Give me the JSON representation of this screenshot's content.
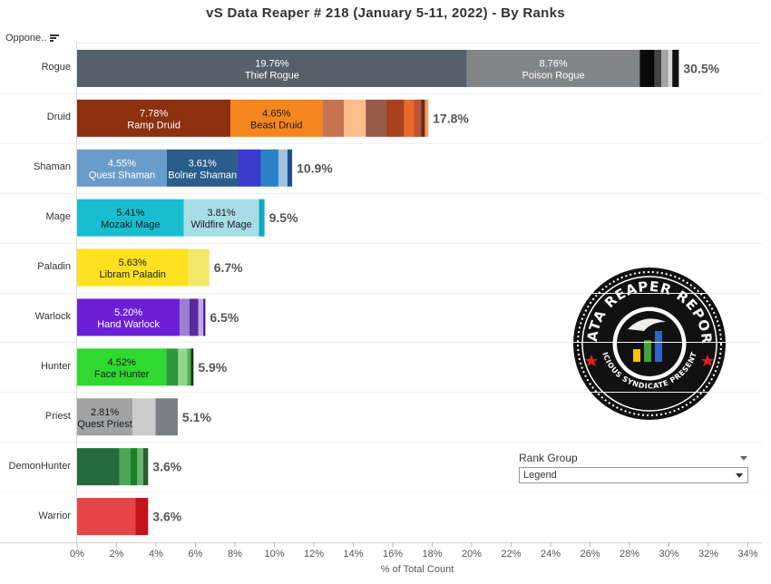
{
  "title": "vS Data Reaper #  218 (January 5-11, 2022) - By Ranks",
  "column_header": "Oppone..",
  "x_axis_title": "% of Total Count",
  "legend": {
    "title": "Rank Group",
    "selected": "Legend"
  },
  "logo": {
    "top_text": "DATA REAPER REPORT",
    "bottom_text": "VICIOUS SYNDICATE PRESENTS"
  },
  "chart_data": {
    "type": "bar",
    "orientation": "horizontal",
    "stacked": true,
    "xlabel": "% of Total Count",
    "xlim": [
      0,
      34
    ],
    "x_ticks": [
      "0%",
      "2%",
      "4%",
      "6%",
      "8%",
      "10%",
      "12%",
      "14%",
      "16%",
      "18%",
      "20%",
      "22%",
      "24%",
      "26%",
      "28%",
      "30%",
      "32%",
      "34%"
    ],
    "grid": false,
    "categories": [
      "Rogue",
      "Druid",
      "Shaman",
      "Mage",
      "Paladin",
      "Warlock",
      "Hunter",
      "Priest",
      "DemonHunter",
      "Warrior"
    ],
    "rows": [
      {
        "class": "Rogue",
        "total_label": "30.5%",
        "segments": [
          {
            "name": "Thief Rogue",
            "label": "19.76%",
            "value": 19.76,
            "color": "#56606b",
            "text_color": "#ffffff"
          },
          {
            "name": "Poison Rogue",
            "label": "8.76%",
            "value": 8.76,
            "color": "#828486",
            "text_color": "#ffffff"
          },
          {
            "value": 0.75,
            "color": "#0a0a0a"
          },
          {
            "value": 0.35,
            "color": "#444444"
          },
          {
            "value": 0.35,
            "color": "#a5a5a5"
          },
          {
            "value": 0.2,
            "color": "#d9d9d9"
          },
          {
            "value": 0.33,
            "color": "#111111"
          }
        ]
      },
      {
        "class": "Druid",
        "total_label": "17.8%",
        "segments": [
          {
            "name": "Ramp Druid",
            "label": "7.78%",
            "value": 7.78,
            "color": "#8c3010",
            "text_color": "#ffffff"
          },
          {
            "name": "Beast Druid",
            "label": "4.65%",
            "value": 4.65,
            "color": "#f5851f",
            "text_color": "#1a1a1a"
          },
          {
            "value": 1.1,
            "color": "#c7734f"
          },
          {
            "value": 1.1,
            "color": "#fbbd8a"
          },
          {
            "value": 1.05,
            "color": "#9a5a4a"
          },
          {
            "value": 0.9,
            "color": "#a8411e"
          },
          {
            "value": 0.5,
            "color": "#e8692a"
          },
          {
            "value": 0.35,
            "color": "#bb5533"
          },
          {
            "value": 0.2,
            "color": "#6d2a18"
          },
          {
            "value": 0.17,
            "color": "#f0a060"
          }
        ]
      },
      {
        "class": "Shaman",
        "total_label": "10.9%",
        "segments": [
          {
            "name": "Quest Shaman",
            "label": "4.55%",
            "value": 4.55,
            "color": "#6a9cc9",
            "text_color": "#ffffff"
          },
          {
            "name": "Bolner Shaman",
            "label": "3.61%",
            "value": 3.61,
            "color": "#2b5d8c",
            "text_color": "#ffffff"
          },
          {
            "value": 1.15,
            "color": "#3a3ccd"
          },
          {
            "value": 0.9,
            "color": "#2b82c8"
          },
          {
            "value": 0.45,
            "color": "#9ec3e0"
          },
          {
            "value": 0.24,
            "color": "#1f4e8a"
          }
        ]
      },
      {
        "class": "Mage",
        "total_label": "9.5%",
        "segments": [
          {
            "name": "Mozaki Mage",
            "label": "5.41%",
            "value": 5.41,
            "color": "#19bdd0",
            "text_color": "#1a1a1a"
          },
          {
            "name": "Wildfire Mage",
            "label": "3.81%",
            "value": 3.81,
            "color": "#a6dde6",
            "text_color": "#1a1a1a"
          },
          {
            "value": 0.28,
            "color": "#12a8c5"
          }
        ]
      },
      {
        "class": "Paladin",
        "total_label": "6.7%",
        "segments": [
          {
            "name": "Libram Paladin",
            "label": "5.63%",
            "value": 5.63,
            "color": "#ffe11f",
            "text_color": "#1a1a1a"
          },
          {
            "value": 1.07,
            "color": "#f3e76a"
          }
        ]
      },
      {
        "class": "Warlock",
        "total_label": "6.5%",
        "segments": [
          {
            "name": "Hand Warlock",
            "label": "5.20%",
            "value": 5.2,
            "color": "#6c1fd6",
            "text_color": "#ffffff"
          },
          {
            "value": 0.5,
            "color": "#9b7fd0"
          },
          {
            "value": 0.45,
            "color": "#5a2a9e"
          },
          {
            "value": 0.25,
            "color": "#c4a8ee"
          },
          {
            "value": 0.1,
            "color": "#3c1480"
          }
        ]
      },
      {
        "class": "Hunter",
        "total_label": "5.9%",
        "segments": [
          {
            "name": "Face Hunter",
            "label": "4.52%",
            "value": 4.52,
            "color": "#2fd92f",
            "text_color": "#1a1a1a"
          },
          {
            "value": 0.6,
            "color": "#2c9a3a"
          },
          {
            "value": 0.45,
            "color": "#8fd98f"
          },
          {
            "value": 0.2,
            "color": "#56b056"
          },
          {
            "value": 0.13,
            "color": "#0e3b12"
          }
        ]
      },
      {
        "class": "Priest",
        "total_label": "5.1%",
        "segments": [
          {
            "name": "Quest Priest",
            "label": "2.81%",
            "value": 2.81,
            "color": "#a0a2a5",
            "text_color": "#1a1a1a"
          },
          {
            "value": 1.17,
            "color": "#cbcbcb"
          },
          {
            "value": 1.12,
            "color": "#7b7e82"
          }
        ]
      },
      {
        "class": "DemonHunter",
        "total_label": "3.6%",
        "segments": [
          {
            "value": 2.15,
            "color": "#256b3e"
          },
          {
            "value": 0.55,
            "color": "#4aa653"
          },
          {
            "value": 0.35,
            "color": "#1f7d2a"
          },
          {
            "value": 0.3,
            "color": "#63b86a"
          },
          {
            "value": 0.25,
            "color": "#2c5c33"
          }
        ]
      },
      {
        "class": "Warrior",
        "total_label": "3.6%",
        "segments": [
          {
            "value": 2.95,
            "color": "#e84446"
          },
          {
            "value": 0.65,
            "color": "#c4121a"
          }
        ]
      }
    ]
  }
}
